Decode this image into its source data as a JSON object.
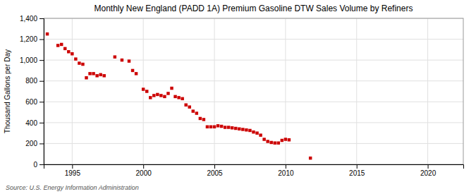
{
  "chart_data": {
    "type": "scatter",
    "title": "Monthly New England (PADD 1A) Premium Gasoline DTW Sales Volume by Refiners",
    "ylabel": "Thousand Gallons per Day",
    "annotations": [
      "Source: U.S. Energy Information Administration"
    ],
    "color": "#cc0000",
    "marker": "square",
    "grid": true,
    "xlim": [
      1993.0,
      2022.5
    ],
    "xticks": [
      1995,
      2000,
      2005,
      2010,
      2015,
      2020
    ],
    "ylim": [
      0,
      1400
    ],
    "yticks": [
      0,
      200,
      400,
      600,
      800,
      {
        "value": 1000,
        "label": "1,000"
      },
      {
        "value": 1200,
        "label": "1,200"
      },
      {
        "value": 1400,
        "label": "1,400"
      }
    ],
    "x": [
      1993.25,
      1994.0,
      1994.25,
      1994.5,
      1994.75,
      1995.0,
      1995.25,
      1995.5,
      1995.75,
      1996.0,
      1996.25,
      1996.5,
      1996.75,
      1997.0,
      1997.25,
      1998.0,
      1998.5,
      1999.0,
      1999.25,
      1999.5,
      2000.0,
      2000.25,
      2000.5,
      2000.75,
      2001.0,
      2001.25,
      2001.5,
      2001.75,
      2002.0,
      2002.25,
      2002.5,
      2002.75,
      2003.0,
      2003.25,
      2003.5,
      2003.75,
      2004.0,
      2004.25,
      2004.5,
      2004.75,
      2005.0,
      2005.25,
      2005.5,
      2005.75,
      2006.0,
      2006.25,
      2006.5,
      2006.75,
      2007.0,
      2007.25,
      2007.5,
      2007.75,
      2008.0,
      2008.25,
      2008.5,
      2008.75,
      2009.0,
      2009.25,
      2009.5,
      2009.75,
      2010.0,
      2010.25,
      2011.75
    ],
    "values": [
      1250,
      1140,
      1150,
      1110,
      1080,
      1060,
      1010,
      970,
      960,
      830,
      870,
      870,
      850,
      860,
      850,
      1030,
      1000,
      990,
      900,
      870,
      720,
      700,
      640,
      660,
      670,
      660,
      650,
      680,
      730,
      650,
      640,
      630,
      570,
      550,
      510,
      490,
      440,
      430,
      360,
      360,
      360,
      370,
      365,
      355,
      355,
      350,
      345,
      340,
      335,
      330,
      325,
      310,
      300,
      280,
      240,
      220,
      210,
      205,
      205,
      230,
      240,
      235,
      60
    ]
  }
}
